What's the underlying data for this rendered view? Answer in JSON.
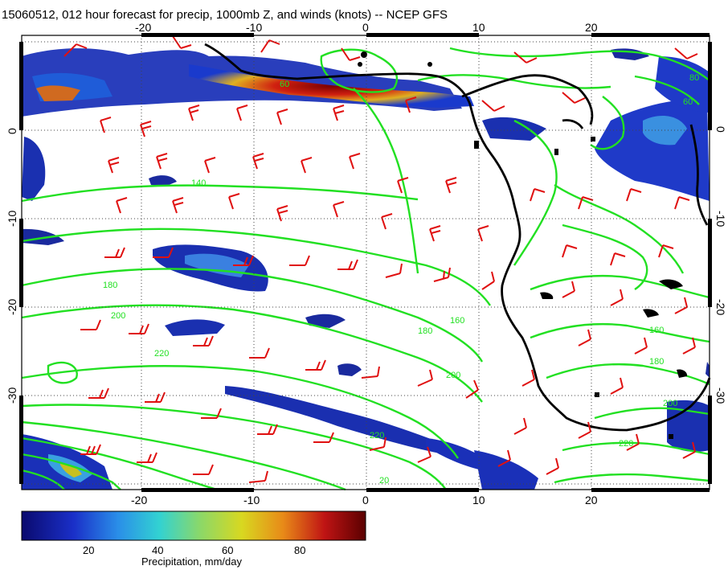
{
  "title": "15060512, 012 hour forecast for precip, 1000mb Z, and winds (knots) -- NCEP GFS",
  "map": {
    "lon_ticks": [
      "-20",
      "-10",
      "0",
      "10",
      "20"
    ],
    "lat_ticks": [
      "0",
      "-10",
      "-20",
      "-30"
    ],
    "contour_labels": [
      "60",
      "140",
      "180",
      "200",
      "220",
      "160",
      "180",
      "200",
      "220",
      "160",
      "180",
      "200",
      "220",
      "80",
      "60",
      "20"
    ]
  },
  "colorbar": {
    "ticks": [
      "20",
      "40",
      "60",
      "80"
    ],
    "label": "Precipitation, mm/day",
    "colors": [
      "#0a0a78",
      "#1f3fd0",
      "#2aa0e8",
      "#3ed6c8",
      "#a8d848",
      "#e0c020",
      "#e07018",
      "#b81010",
      "#5a0000"
    ]
  },
  "colors": {
    "contour": "#22e022",
    "barb": "#e01010",
    "coast": "#000000"
  }
}
